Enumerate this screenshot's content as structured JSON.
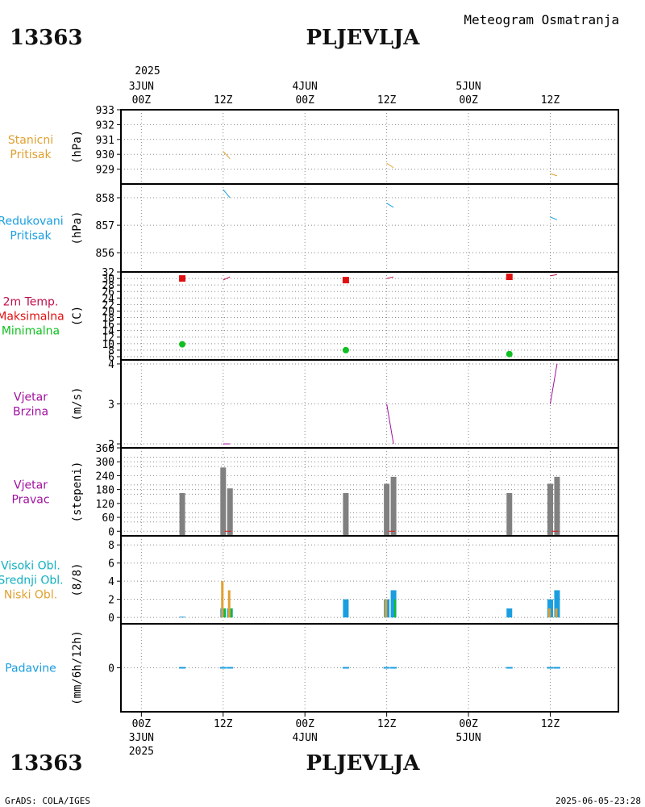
{
  "header": {
    "station_id": "13363",
    "station_name": "PLJEVLJA",
    "meteogram_title": "Meteogram  Osmatranja",
    "footer_left": "GrADS: COLA/IGES",
    "footer_right": "2025-06-05-23:28"
  },
  "time_axis": {
    "year": "2025",
    "ticks": [
      {
        "hour": 0,
        "top": [
          "3JUN",
          "00Z"
        ],
        "bottom": [
          "00Z",
          "3JUN",
          "2025"
        ]
      },
      {
        "hour": 12,
        "top": [
          "12Z"
        ],
        "bottom": [
          "12Z"
        ]
      },
      {
        "hour": 24,
        "top": [
          "4JUN",
          "00Z"
        ],
        "bottom": [
          "00Z",
          "4JUN"
        ]
      },
      {
        "hour": 36,
        "top": [
          "12Z"
        ],
        "bottom": [
          "12Z"
        ]
      },
      {
        "hour": 48,
        "top": [
          "5JUN",
          "00Z"
        ],
        "bottom": [
          "00Z",
          "5JUN"
        ]
      },
      {
        "hour": 60,
        "top": [
          "12Z"
        ],
        "bottom": [
          "12Z"
        ]
      }
    ],
    "range_hours": [
      -3,
      70
    ]
  },
  "colors": {
    "orange": "#e0a030",
    "blue": "#1a9ee0",
    "red": "#e01010",
    "green": "#10c020",
    "purple": "#a010a0",
    "cyan": "#10b0c0",
    "gray": "#808080",
    "crimson": "#c0104a"
  },
  "chart_data": [
    {
      "type": "line",
      "panel": "station_pressure",
      "labels": [
        {
          "text": "Stanicni",
          "color": "#e0a030"
        },
        {
          "text": "Pritisak",
          "color": "#e0a030"
        }
      ],
      "ylabel": "(hPa)",
      "ylim": [
        928,
        933
      ],
      "yticks": [
        929,
        930,
        931,
        932,
        933
      ],
      "series": [
        {
          "name": "Stanicni Pritisak",
          "color": "#e0a030",
          "segments": [
            [
              [
                12,
                930.2
              ],
              [
                13,
                929.7
              ]
            ],
            [
              [
                36,
                929.4
              ],
              [
                37,
                929.1
              ]
            ],
            [
              [
                60,
                928.7
              ],
              [
                61,
                928.55
              ]
            ]
          ]
        }
      ]
    },
    {
      "type": "line",
      "panel": "reduced_pressure",
      "labels": [
        {
          "text": "Redukovani",
          "color": "#1a9ee0"
        },
        {
          "text": "Pritisak",
          "color": "#1a9ee0"
        }
      ],
      "ylabel": "(hPa)",
      "ylim": [
        855.3,
        858.5
      ],
      "yticks": [
        856,
        857,
        858
      ],
      "series": [
        {
          "name": "Redukovani Pritisak",
          "color": "#1a9ee0",
          "segments": [
            [
              [
                12,
                858.3
              ],
              [
                13,
                858.0
              ]
            ],
            [
              [
                36,
                857.8
              ],
              [
                37,
                857.65
              ]
            ],
            [
              [
                60,
                857.3
              ],
              [
                61,
                857.2
              ]
            ]
          ]
        }
      ]
    },
    {
      "type": "scatter",
      "panel": "temperature",
      "labels": [
        {
          "text": "2m Temp.",
          "color": "#c0104a"
        },
        {
          "text": "Maksimalna",
          "color": "#e01010"
        },
        {
          "text": "Minimalna",
          "color": "#10c020"
        }
      ],
      "ylabel": "(C)",
      "ylim": [
        5,
        32
      ],
      "yticks": [
        6,
        8,
        10,
        12,
        14,
        16,
        18,
        20,
        22,
        24,
        26,
        28,
        30,
        32
      ],
      "max": {
        "name": "Maksimalna",
        "x": [
          6,
          30,
          54
        ],
        "y": [
          30,
          29.5,
          30.5
        ]
      },
      "min": {
        "name": "Minimalna",
        "x": [
          6,
          30,
          54
        ],
        "y": [
          9.8,
          8,
          6.8
        ]
      },
      "series": [
        {
          "name": "2m Temp.",
          "color": "#c0104a",
          "segments": [
            [
              [
                12,
                29.5
              ],
              [
                13,
                30.5
              ]
            ],
            [
              [
                36,
                30
              ],
              [
                37,
                30.5
              ]
            ],
            [
              [
                60,
                30.8
              ],
              [
                61,
                31.2
              ]
            ]
          ]
        }
      ]
    },
    {
      "type": "line",
      "panel": "wind_speed",
      "labels": [
        {
          "text": "Vjetar",
          "color": "#a010a0"
        },
        {
          "text": "Brzina",
          "color": "#a010a0"
        }
      ],
      "ylabel": "(m/s)",
      "ylim": [
        1.9,
        4.1
      ],
      "yticks": [
        2,
        3,
        4
      ],
      "series": [
        {
          "name": "Vjetar Brzina",
          "color": "#a010a0",
          "segments": [
            [
              [
                12,
                2
              ],
              [
                13,
                2
              ]
            ],
            [
              [
                36,
                3
              ],
              [
                37,
                2
              ]
            ],
            [
              [
                60,
                3
              ],
              [
                61,
                4
              ]
            ]
          ]
        }
      ]
    },
    {
      "type": "bar",
      "panel": "wind_direction",
      "labels": [
        {
          "text": "Vjetar",
          "color": "#a010a0"
        },
        {
          "text": "Pravac",
          "color": "#a010a0"
        }
      ],
      "ylabel": "(stepeni)",
      "ylim": [
        -20,
        360
      ],
      "yticks": [
        0,
        60,
        120,
        180,
        240,
        300,
        360
      ],
      "yticks_minor": [
        40,
        80,
        160,
        200,
        280,
        320
      ],
      "bars": [
        {
          "x": 6,
          "value": 165
        },
        {
          "x": 12,
          "value": 275
        },
        {
          "x": 13,
          "value": 185
        },
        {
          "x": 30,
          "value": 165
        },
        {
          "x": 36,
          "value": 205
        },
        {
          "x": 37,
          "value": 235
        },
        {
          "x": 54,
          "value": 165
        },
        {
          "x": 60,
          "value": 205
        },
        {
          "x": 61,
          "value": 235
        }
      ],
      "bar_color": "#808080"
    },
    {
      "type": "bar",
      "panel": "clouds",
      "labels": [
        {
          "text": "Visoki Obl.",
          "color": "#10b0c0"
        },
        {
          "text": "Srednji Obl.",
          "color": "#10b0c0"
        },
        {
          "text": "Niski Obl.",
          "color": "#e0a030"
        }
      ],
      "ylabel": "(8/8)",
      "ylim": [
        -0.7,
        9
      ],
      "yticks": [
        0,
        2,
        4,
        6,
        8
      ],
      "series": [
        {
          "name": "Visoki Obl.",
          "color": "#1a9ee0",
          "points": [
            {
              "x": 6,
              "value": 0
            },
            {
              "x": 12,
              "value": 1
            },
            {
              "x": 13,
              "value": 1
            },
            {
              "x": 30,
              "value": 2
            },
            {
              "x": 36,
              "value": 2
            },
            {
              "x": 37,
              "value": 3
            },
            {
              "x": 54,
              "value": 1
            },
            {
              "x": 60,
              "value": 2
            },
            {
              "x": 61,
              "value": 3
            }
          ]
        },
        {
          "name": "Srednji Obl.",
          "color": "#10c020",
          "points": [
            {
              "x": 12,
              "value": 1
            },
            {
              "x": 13,
              "value": 1
            },
            {
              "x": 37,
              "value": 2
            }
          ]
        },
        {
          "name": "Niski Obl.",
          "color": "#e0a030",
          "points": [
            {
              "x": 12,
              "value": 4
            },
            {
              "x": 13,
              "value": 3
            },
            {
              "x": 36,
              "value": 2
            },
            {
              "x": 60,
              "value": 1
            },
            {
              "x": 61,
              "value": 1
            }
          ]
        }
      ]
    },
    {
      "type": "bar",
      "panel": "precipitation",
      "labels": [
        {
          "text": "Padavine",
          "color": "#1a9ee0"
        }
      ],
      "ylabel": "(mm/6h/12h)",
      "ylim": [
        -1,
        1
      ],
      "yticks": [
        0
      ],
      "bars": [
        {
          "x": 6,
          "value": 0
        },
        {
          "x": 12,
          "value": 0
        },
        {
          "x": 13,
          "value": 0
        },
        {
          "x": 30,
          "value": 0
        },
        {
          "x": 36,
          "value": 0
        },
        {
          "x": 37,
          "value": 0
        },
        {
          "x": 54,
          "value": 0
        },
        {
          "x": 60,
          "value": 0
        },
        {
          "x": 61,
          "value": 0
        }
      ],
      "bar_color": "#1a9ee0"
    }
  ]
}
